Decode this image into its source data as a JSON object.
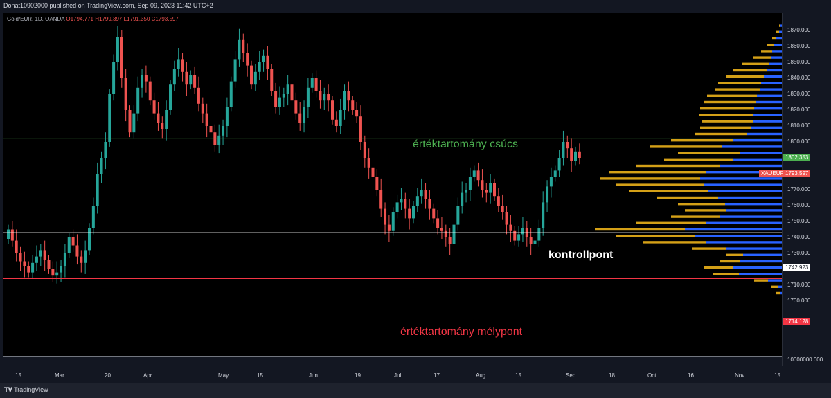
{
  "header": {
    "published_by": "Donat10902000 published on TradingView.com, Sep 09, 2023 11:42 UTC+2"
  },
  "legend": {
    "symbol": "Gold/EUR, 1D, OANDA",
    "open": "O1794.771",
    "high": "H1799.397",
    "low": "L1791.350",
    "close": "C1793.597"
  },
  "price_axis": {
    "ticks": [
      "1870.000",
      "1860.000",
      "1850.000",
      "1840.000",
      "1830.000",
      "1820.000",
      "1810.000",
      "1800.000",
      "1790.000",
      "1780.000",
      "1770.000",
      "1760.000",
      "1750.000",
      "1740.000",
      "1730.000",
      "1720.000",
      "1710.000",
      "1700.000"
    ],
    "volume_tick": "10000000.000",
    "tags": {
      "value_area_high": "1802.353",
      "symbol_tag": "XAUEUR",
      "last_price": "1793.597",
      "poc": "1742.923",
      "value_area_low": "1714.128"
    }
  },
  "time_axis": {
    "labels": [
      "15",
      "Mar",
      "20",
      "Apr",
      "May",
      "15",
      "Jun",
      "19",
      "Jul",
      "17",
      "Aug",
      "15",
      "Sep",
      "18",
      "Oct",
      "16",
      "Nov",
      "15"
    ]
  },
  "annotations": {
    "vah_label": "értéktartomány csúcs",
    "poc_label": "kontrollpont",
    "val_label": "értéktartomány mélypont"
  },
  "colors": {
    "up": "#26a69a",
    "down": "#ef5350",
    "vah_line": "#4caf50",
    "val_line": "#f23645",
    "poc_line": "#ffffff",
    "profile_blue": "#2962ff",
    "profile_gold": "#d4a017"
  },
  "footer": {
    "brand": "TradingView"
  }
}
